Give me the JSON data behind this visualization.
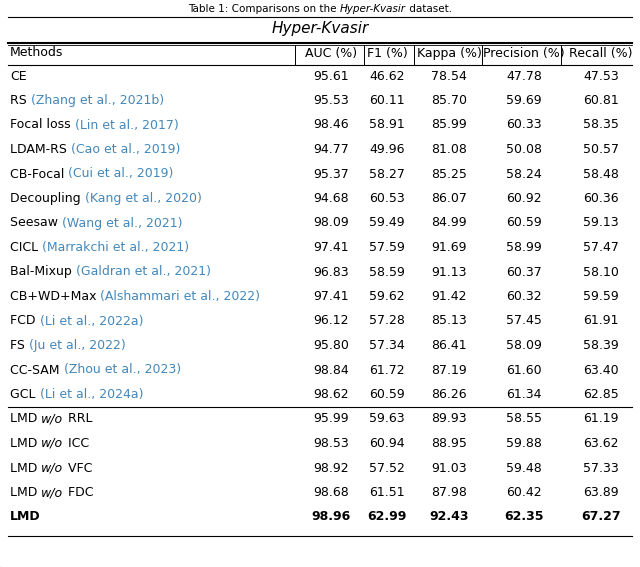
{
  "super_title_parts": [
    {
      "text": "Table 1: Comparisons on the ",
      "style": "normal"
    },
    {
      "text": "Hyper-Kvasir",
      "style": "italic"
    },
    {
      "text": " dataset.",
      "style": "normal"
    }
  ],
  "section_title": "Hyper-Kvasir",
  "col_headers": [
    "Methods",
    "AUC (%)",
    "F1 (%)",
    "Kappa (%)",
    "Precision (%)",
    "Recall (%)"
  ],
  "rows": [
    {
      "method_parts": [
        {
          "text": "CE",
          "color": "black",
          "style": "normal"
        }
      ],
      "values": [
        "95.61",
        "46.62",
        "78.54",
        "47.78",
        "47.53"
      ],
      "underline": [
        false,
        false,
        false,
        false,
        false
      ],
      "bold": false,
      "separator_above": false
    },
    {
      "method_parts": [
        {
          "text": "RS ",
          "color": "black",
          "style": "normal"
        },
        {
          "text": "(Zhang et al., 2021b)",
          "color": "#4488bb",
          "style": "normal"
        }
      ],
      "values": [
        "95.53",
        "60.11",
        "85.70",
        "59.69",
        "60.81"
      ],
      "underline": [
        false,
        false,
        false,
        false,
        false
      ],
      "bold": false,
      "separator_above": false
    },
    {
      "method_parts": [
        {
          "text": "Focal loss ",
          "color": "black",
          "style": "normal"
        },
        {
          "text": "(Lin et al., 2017)",
          "color": "#4488bb",
          "style": "normal"
        }
      ],
      "values": [
        "98.46",
        "58.91",
        "85.99",
        "60.33",
        "58.35"
      ],
      "underline": [
        false,
        false,
        false,
        false,
        false
      ],
      "bold": false,
      "separator_above": false
    },
    {
      "method_parts": [
        {
          "text": "LDAM-RS ",
          "color": "black",
          "style": "normal"
        },
        {
          "text": "(Cao et al., 2019)",
          "color": "#4488bb",
          "style": "normal"
        }
      ],
      "values": [
        "94.77",
        "49.96",
        "81.08",
        "50.08",
        "50.57"
      ],
      "underline": [
        false,
        false,
        false,
        false,
        false
      ],
      "bold": false,
      "separator_above": false
    },
    {
      "method_parts": [
        {
          "text": "CB-Focal ",
          "color": "black",
          "style": "normal"
        },
        {
          "text": "(Cui et al., 2019)",
          "color": "#4488bb",
          "style": "normal"
        }
      ],
      "values": [
        "95.37",
        "58.27",
        "85.25",
        "58.24",
        "58.48"
      ],
      "underline": [
        false,
        false,
        false,
        false,
        false
      ],
      "bold": false,
      "separator_above": false
    },
    {
      "method_parts": [
        {
          "text": "Decoupling ",
          "color": "black",
          "style": "normal"
        },
        {
          "text": "(Kang et al., 2020)",
          "color": "#4488bb",
          "style": "normal"
        }
      ],
      "values": [
        "94.68",
        "60.53",
        "86.07",
        "60.92",
        "60.36"
      ],
      "underline": [
        false,
        false,
        false,
        false,
        false
      ],
      "bold": false,
      "separator_above": false
    },
    {
      "method_parts": [
        {
          "text": "Seesaw ",
          "color": "black",
          "style": "normal"
        },
        {
          "text": "(Wang et al., 2021)",
          "color": "#4488bb",
          "style": "normal"
        }
      ],
      "values": [
        "98.09",
        "59.49",
        "84.99",
        "60.59",
        "59.13"
      ],
      "underline": [
        false,
        false,
        false,
        false,
        false
      ],
      "bold": false,
      "separator_above": false
    },
    {
      "method_parts": [
        {
          "text": "CICL ",
          "color": "black",
          "style": "normal"
        },
        {
          "text": "(Marrakchi et al., 2021)",
          "color": "#4488bb",
          "style": "normal"
        }
      ],
      "values": [
        "97.41",
        "57.59",
        "91.69",
        "58.99",
        "57.47"
      ],
      "underline": [
        false,
        false,
        true,
        false,
        false
      ],
      "bold": false,
      "separator_above": false
    },
    {
      "method_parts": [
        {
          "text": "Bal-Mixup ",
          "color": "black",
          "style": "normal"
        },
        {
          "text": "(Galdran et al., 2021)",
          "color": "#4488bb",
          "style": "normal"
        }
      ],
      "values": [
        "96.83",
        "58.59",
        "91.13",
        "60.37",
        "58.10"
      ],
      "underline": [
        false,
        false,
        false,
        false,
        false
      ],
      "bold": false,
      "separator_above": false
    },
    {
      "method_parts": [
        {
          "text": "CB+WD+Max ",
          "color": "black",
          "style": "normal"
        },
        {
          "text": "(Alshammari et al., 2022)",
          "color": "#4488bb",
          "style": "normal"
        }
      ],
      "values": [
        "97.41",
        "59.62",
        "91.42",
        "60.32",
        "59.59"
      ],
      "underline": [
        false,
        false,
        false,
        false,
        false
      ],
      "bold": false,
      "separator_above": false
    },
    {
      "method_parts": [
        {
          "text": "FCD ",
          "color": "black",
          "style": "normal"
        },
        {
          "text": "(Li et al., 2022a)",
          "color": "#4488bb",
          "style": "normal"
        }
      ],
      "values": [
        "96.12",
        "57.28",
        "85.13",
        "57.45",
        "61.91"
      ],
      "underline": [
        false,
        false,
        false,
        false,
        false
      ],
      "bold": false,
      "separator_above": false
    },
    {
      "method_parts": [
        {
          "text": "FS ",
          "color": "black",
          "style": "normal"
        },
        {
          "text": "(Ju et al., 2022)",
          "color": "#4488bb",
          "style": "normal"
        }
      ],
      "values": [
        "95.80",
        "57.34",
        "86.41",
        "58.09",
        "58.39"
      ],
      "underline": [
        false,
        false,
        false,
        false,
        false
      ],
      "bold": false,
      "separator_above": false
    },
    {
      "method_parts": [
        {
          "text": "CC-SAM ",
          "color": "black",
          "style": "normal"
        },
        {
          "text": "(Zhou et al., 2023)",
          "color": "#4488bb",
          "style": "normal"
        }
      ],
      "values": [
        "98.84",
        "61.72",
        "87.19",
        "61.60",
        "63.40"
      ],
      "underline": [
        false,
        true,
        false,
        true,
        false
      ],
      "bold": false,
      "separator_above": false
    },
    {
      "method_parts": [
        {
          "text": "GCL ",
          "color": "black",
          "style": "normal"
        },
        {
          "text": "(Li et al., 2024a)",
          "color": "#4488bb",
          "style": "normal"
        }
      ],
      "values": [
        "98.62",
        "60.59",
        "86.26",
        "61.34",
        "62.85"
      ],
      "underline": [
        false,
        false,
        false,
        false,
        false
      ],
      "bold": false,
      "separator_above": false
    },
    {
      "method_parts": [
        {
          "text": "LMD ",
          "color": "black",
          "style": "normal"
        },
        {
          "text": "w/o",
          "color": "black",
          "style": "italic"
        },
        {
          "text": " RRL",
          "color": "black",
          "style": "normal"
        }
      ],
      "values": [
        "95.99",
        "59.63",
        "89.93",
        "58.55",
        "61.19"
      ],
      "underline": [
        false,
        false,
        false,
        false,
        false
      ],
      "bold": false,
      "separator_above": true
    },
    {
      "method_parts": [
        {
          "text": "LMD ",
          "color": "black",
          "style": "normal"
        },
        {
          "text": "w/o",
          "color": "black",
          "style": "italic"
        },
        {
          "text": " ICC",
          "color": "black",
          "style": "normal"
        }
      ],
      "values": [
        "98.53",
        "60.94",
        "88.95",
        "59.88",
        "63.62"
      ],
      "underline": [
        false,
        false,
        false,
        false,
        false
      ],
      "bold": false,
      "separator_above": false
    },
    {
      "method_parts": [
        {
          "text": "LMD ",
          "color": "black",
          "style": "normal"
        },
        {
          "text": "w/o",
          "color": "black",
          "style": "italic"
        },
        {
          "text": " VFC",
          "color": "black",
          "style": "normal"
        }
      ],
      "values": [
        "98.92",
        "57.52",
        "91.03",
        "59.48",
        "57.33"
      ],
      "underline": [
        true,
        false,
        false,
        false,
        false
      ],
      "bold": false,
      "separator_above": false
    },
    {
      "method_parts": [
        {
          "text": "LMD ",
          "color": "black",
          "style": "normal"
        },
        {
          "text": "w/o",
          "color": "black",
          "style": "italic"
        },
        {
          "text": " FDC",
          "color": "black",
          "style": "normal"
        }
      ],
      "values": [
        "98.68",
        "61.51",
        "87.98",
        "60.42",
        "63.89"
      ],
      "underline": [
        false,
        false,
        false,
        false,
        true
      ],
      "bold": false,
      "separator_above": false
    },
    {
      "method_parts": [
        {
          "text": "LMD",
          "color": "black",
          "style": "bold"
        }
      ],
      "values": [
        "98.96",
        "62.99",
        "92.43",
        "62.35",
        "67.27"
      ],
      "underline": [
        false,
        false,
        false,
        false,
        false
      ],
      "bold": true,
      "separator_above": false
    }
  ],
  "font_size_super": 7.5,
  "font_size_section": 11,
  "font_size_header": 9,
  "font_size_data": 9,
  "link_color": "#4488bb",
  "text_color": "black",
  "line_color": "black"
}
